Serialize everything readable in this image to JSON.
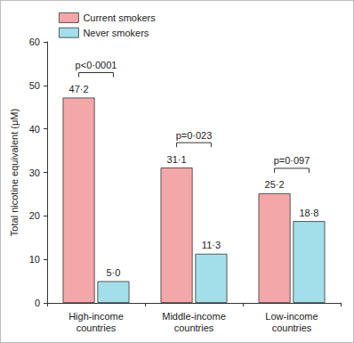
{
  "chart_data": {
    "type": "bar",
    "y_label": "Total nicotine equivalent (μM)",
    "categories": [
      "High-income countries",
      "Middle-income countries",
      "Low-income countries"
    ],
    "series": [
      {
        "name": "Current smokers",
        "color": "#f4a7a8",
        "values": [
          47.2,
          31.1,
          25.2
        ],
        "value_labels": [
          "47·2",
          "31·1",
          "25·2"
        ]
      },
      {
        "name": "Never smokers",
        "color": "#a3dfea",
        "values": [
          5.0,
          11.3,
          18.8
        ],
        "value_labels": [
          "5·0",
          "11·3",
          "18·8"
        ]
      }
    ],
    "ylim": [
      0,
      60
    ],
    "yticks": [
      0,
      10,
      20,
      30,
      40,
      50,
      60
    ],
    "grid": false,
    "legend": "upper left",
    "data_labels": true,
    "annotations": [
      {
        "category": "High-income countries",
        "text": "p<0·0001"
      },
      {
        "category": "Middle-income countries",
        "text": "p=0·023"
      },
      {
        "category": "Low-income countries",
        "text": "p=0·097"
      }
    ]
  }
}
